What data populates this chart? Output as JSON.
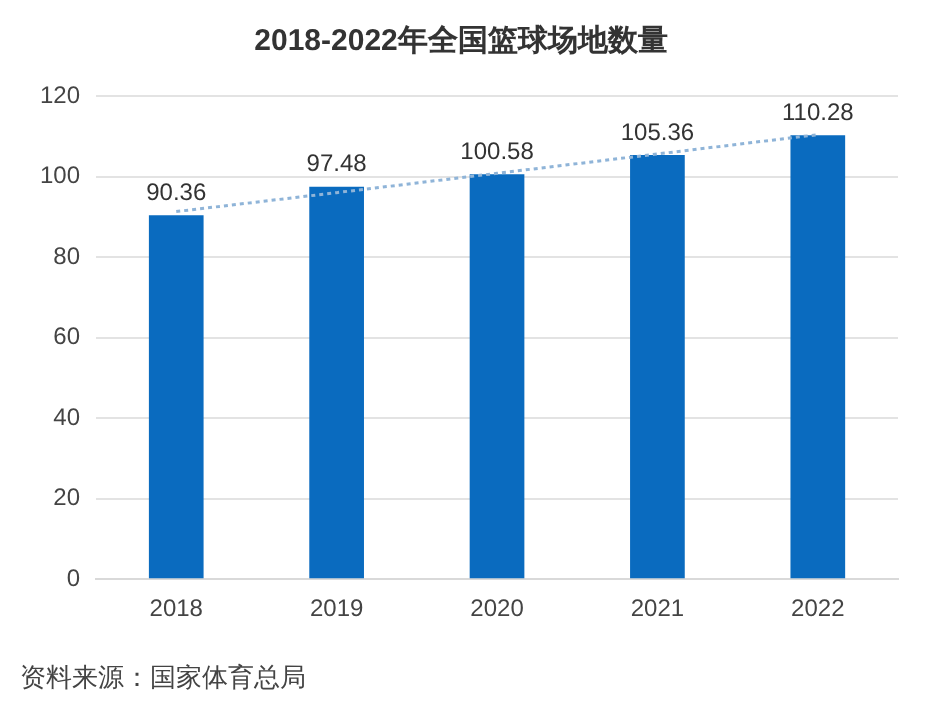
{
  "chart_data": {
    "type": "bar",
    "title": "2018-2022年全国篮球场地数量",
    "categories": [
      "2018",
      "2019",
      "2020",
      "2021",
      "2022"
    ],
    "series": [
      {
        "color": "#0a6bbf",
        "values": [
          90.36,
          97.48,
          100.58,
          105.36,
          110.28
        ],
        "value_labels": [
          "90.36",
          "97.48",
          "100.58",
          "105.36",
          "110.28"
        ]
      },
      {
        "type": "line",
        "color": "#8fb4d8",
        "line_style": "dotted",
        "marker": "none",
        "values": [
          91.3,
          96.0,
          100.8,
          105.6,
          110.4
        ]
      }
    ],
    "ylim": [
      0,
      120
    ],
    "yticks": [
      0,
      20,
      40,
      60,
      80,
      100,
      120
    ],
    "grid": "y",
    "legend": false,
    "annotations": [
      "资料来源：国家体育总局"
    ]
  }
}
